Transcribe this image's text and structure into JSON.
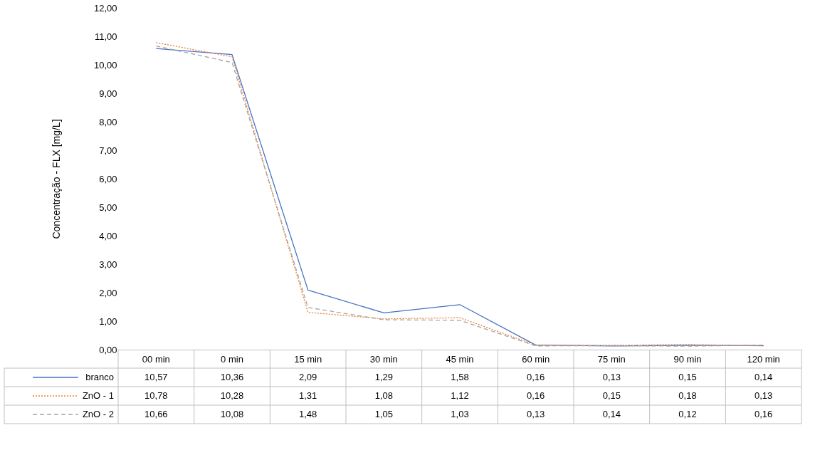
{
  "chart_data": {
    "type": "line",
    "ylabel": "Concentração - FLX [mg/L]",
    "categories": [
      "00 min",
      "0 min",
      "15 min",
      "30 min",
      "45 min",
      "60 min",
      "75 min",
      "90 min",
      "120 min"
    ],
    "ylim": [
      0,
      12
    ],
    "yticks": [
      {
        "value": 0,
        "label": "0,00"
      },
      {
        "value": 1,
        "label": "1,00"
      },
      {
        "value": 2,
        "label": "2,00"
      },
      {
        "value": 3,
        "label": "3,00"
      },
      {
        "value": 4,
        "label": "4,00"
      },
      {
        "value": 5,
        "label": "5,00"
      },
      {
        "value": 6,
        "label": "6,00"
      },
      {
        "value": 7,
        "label": "7,00"
      },
      {
        "value": 8,
        "label": "8,00"
      },
      {
        "value": 9,
        "label": "9,00"
      },
      {
        "value": 10,
        "label": "10,00"
      },
      {
        "value": 11,
        "label": "11,00"
      },
      {
        "value": 12,
        "label": "12,00"
      }
    ],
    "grid": false,
    "legend": "bottom left",
    "marker": "none",
    "series": [
      {
        "name": "branco",
        "color": "#4472c4",
        "line_style": "solid",
        "values": [
          10.57,
          10.36,
          2.09,
          1.29,
          1.58,
          0.16,
          0.13,
          0.15,
          0.14
        ],
        "value_labels": [
          "10,57",
          "10,36",
          "2,09",
          "1,29",
          "1,58",
          "0,16",
          "0,13",
          "0,15",
          "0,14"
        ]
      },
      {
        "name": "ZnO - 1",
        "color": "#ed7d31",
        "line_style": "dotted",
        "values": [
          10.78,
          10.28,
          1.31,
          1.08,
          1.12,
          0.16,
          0.15,
          0.18,
          0.13
        ],
        "value_labels": [
          "10,78",
          "10,28",
          "1,31",
          "1,08",
          "1,12",
          "0,16",
          "0,15",
          "0,18",
          "0,13"
        ]
      },
      {
        "name": "ZnO - 2",
        "color": "#a5a5a5",
        "line_style": "dashed",
        "values": [
          10.66,
          10.08,
          1.48,
          1.05,
          1.03,
          0.13,
          0.14,
          0.12,
          0.16
        ],
        "value_labels": [
          "10,66",
          "10,08",
          "1,48",
          "1,05",
          "1,03",
          "0,13",
          "0,14",
          "0,12",
          "0,16"
        ]
      }
    ]
  }
}
